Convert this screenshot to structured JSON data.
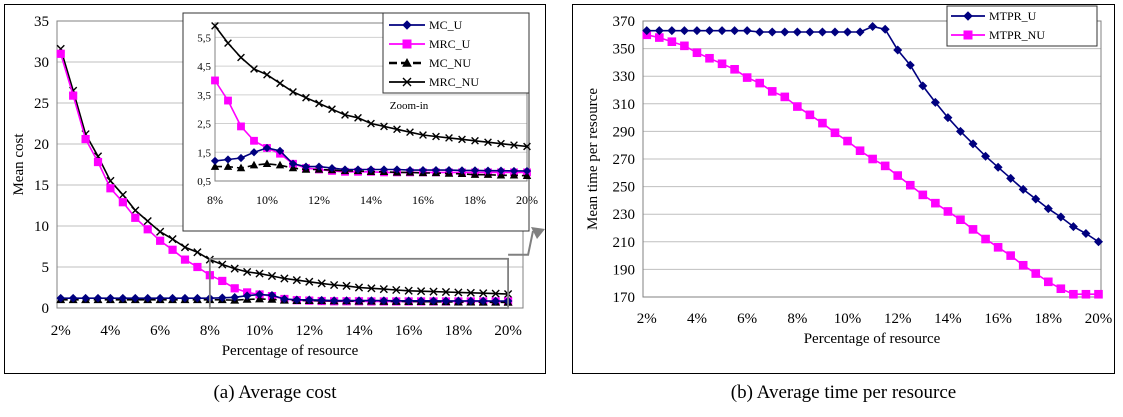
{
  "captions": {
    "a": "(a) Average cost",
    "b": "(b) Average time per resource"
  },
  "chart_data": [
    {
      "type": "line",
      "panel": "a",
      "xlabel": "Percentage of resource",
      "ylabel": "Mean cost",
      "x": [
        2,
        2.5,
        3,
        3.5,
        4,
        4.5,
        5,
        5.5,
        6,
        6.5,
        7,
        7.5,
        8,
        8.5,
        9,
        9.5,
        10,
        10.5,
        11,
        11.5,
        12,
        12.5,
        13,
        13.5,
        14,
        14.5,
        15,
        15.5,
        16,
        16.5,
        17,
        17.5,
        18,
        18.5,
        19,
        19.5,
        20
      ],
      "xticks": [
        "2%",
        "4%",
        "6%",
        "8%",
        "10%",
        "12%",
        "14%",
        "16%",
        "18%",
        "20%"
      ],
      "xtick_values": [
        2,
        4,
        6,
        8,
        10,
        12,
        14,
        16,
        18,
        20
      ],
      "ylim": [
        0,
        35
      ],
      "yticks": [
        0,
        5,
        10,
        15,
        20,
        25,
        30,
        35
      ],
      "grid": "horizontal",
      "legend": "inside top-right",
      "series": [
        {
          "name": "MC_U",
          "color": "#00007f",
          "marker": "diamond",
          "dash": "solid",
          "values": [
            1.2,
            1.2,
            1.2,
            1.2,
            1.2,
            1.2,
            1.2,
            1.2,
            1.2,
            1.2,
            1.2,
            1.2,
            1.2,
            1.25,
            1.3,
            1.5,
            1.65,
            1.55,
            1.1,
            1.0,
            1.0,
            0.95,
            0.9,
            0.9,
            0.9,
            0.9,
            0.9,
            0.88,
            0.88,
            0.88,
            0.88,
            0.87,
            0.87,
            0.86,
            0.86,
            0.85,
            0.85
          ]
        },
        {
          "name": "MRC_U",
          "color": "#ff00ff",
          "marker": "square",
          "dash": "solid",
          "values": [
            31.0,
            25.9,
            20.6,
            17.8,
            14.6,
            12.9,
            11.0,
            9.6,
            8.2,
            7.1,
            5.9,
            5.0,
            4.0,
            3.3,
            2.4,
            1.9,
            1.65,
            1.45,
            1.1,
            0.95,
            0.9,
            0.85,
            0.82,
            0.82,
            0.82,
            0.8,
            0.8,
            0.8,
            0.8,
            0.8,
            0.8,
            0.8,
            0.8,
            0.8,
            0.8,
            0.8,
            0.8
          ]
        },
        {
          "name": "MC_NU",
          "color": "#000000",
          "marker": "triangle",
          "dash": "dashed",
          "values": [
            1.0,
            1.0,
            1.0,
            1.0,
            1.0,
            1.0,
            1.0,
            1.0,
            1.0,
            1.0,
            1.0,
            1.0,
            1.0,
            1.0,
            0.95,
            1.05,
            1.1,
            1.05,
            0.95,
            0.9,
            0.9,
            0.88,
            0.85,
            0.85,
            0.82,
            0.82,
            0.8,
            0.8,
            0.78,
            0.78,
            0.76,
            0.75,
            0.72,
            0.72,
            0.7,
            0.7,
            0.68
          ]
        },
        {
          "name": "MRC_NU",
          "color": "#000000",
          "marker": "x",
          "dash": "solid",
          "values": [
            31.6,
            26.5,
            21.2,
            18.5,
            15.5,
            13.8,
            11.9,
            10.6,
            9.3,
            8.4,
            7.4,
            6.8,
            5.9,
            5.3,
            4.8,
            4.4,
            4.2,
            3.9,
            3.6,
            3.4,
            3.2,
            3.0,
            2.8,
            2.7,
            2.5,
            2.4,
            2.3,
            2.2,
            2.1,
            2.05,
            2.0,
            1.95,
            1.9,
            1.85,
            1.8,
            1.75,
            1.7
          ]
        }
      ],
      "inset": {
        "label": "Zoom-in",
        "xlim": [
          8,
          20
        ],
        "ylim": [
          0.5,
          6
        ],
        "yticks": [
          "0,5",
          "1,5",
          "2,5",
          "3,5",
          "4,5",
          "5,5"
        ],
        "ytick_values": [
          0.5,
          1.5,
          2.5,
          3.5,
          4.5,
          5.5
        ],
        "xticks": [
          "8%",
          "10%",
          "12%",
          "14%",
          "16%",
          "18%",
          "20%"
        ],
        "xtick_values": [
          8,
          10,
          12,
          14,
          16,
          18,
          20
        ]
      }
    },
    {
      "type": "line",
      "panel": "b",
      "xlabel": "Percentage of resource",
      "ylabel": "Mean time per resource",
      "x": [
        2,
        2.5,
        3,
        3.5,
        4,
        4.5,
        5,
        5.5,
        6,
        6.5,
        7,
        7.5,
        8,
        8.5,
        9,
        9.5,
        10,
        10.5,
        11,
        11.5,
        12,
        12.5,
        13,
        13.5,
        14,
        14.5,
        15,
        15.5,
        16,
        16.5,
        17,
        17.5,
        18,
        18.5,
        19,
        19.5,
        20
      ],
      "xticks": [
        "2%",
        "4%",
        "6%",
        "8%",
        "10%",
        "12%",
        "14%",
        "16%",
        "18%",
        "20%"
      ],
      "xtick_values": [
        2,
        4,
        6,
        8,
        10,
        12,
        14,
        16,
        18,
        20
      ],
      "ylim": [
        170,
        370
      ],
      "yticks": [
        170,
        190,
        210,
        230,
        250,
        270,
        290,
        310,
        330,
        350,
        370
      ],
      "grid": "horizontal",
      "legend": "top-right",
      "series": [
        {
          "name": "MTPR_U",
          "color": "#00007f",
          "marker": "diamond",
          "values": [
            363,
            363,
            363,
            363,
            363,
            363,
            363,
            363,
            363,
            362,
            362,
            362,
            362,
            362,
            362,
            362,
            362,
            362,
            366,
            364,
            349,
            338,
            323,
            311,
            300,
            290,
            281,
            272,
            264,
            256,
            248,
            241,
            234,
            228,
            221,
            216,
            210
          ]
        },
        {
          "name": "MTPR_NU",
          "color": "#ff00ff",
          "marker": "square",
          "values": [
            360,
            358,
            355,
            352,
            347,
            343,
            339,
            335,
            329,
            325,
            319,
            315,
            308,
            302,
            296,
            289,
            283,
            276,
            270,
            265,
            258,
            251,
            244,
            238,
            232,
            226,
            219,
            212,
            206,
            200,
            193,
            187,
            181,
            176,
            172,
            172,
            172
          ]
        }
      ]
    }
  ]
}
